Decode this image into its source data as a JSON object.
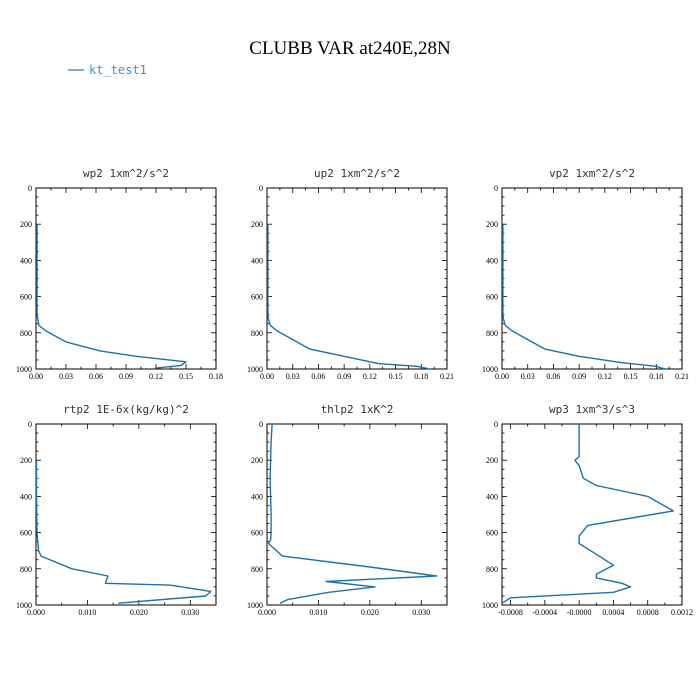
{
  "title": "CLUBB VAR at240E,28N",
  "legend": {
    "label": "kt_test1",
    "color": "#4a90c8"
  },
  "series_color": "#1f6fae",
  "chart_data": [
    {
      "type": "line",
      "title": "wp2  1xm^2/s^2",
      "xlim": [
        0,
        0.18
      ],
      "ylim": [
        0,
        1000
      ],
      "xticks": [
        "0.00",
        "0.03",
        "0.06",
        "0.09",
        "0.12",
        "0.15",
        "0.18"
      ],
      "xticks_v": [
        0,
        0.03,
        0.06,
        0.09,
        0.12,
        0.15,
        0.18
      ],
      "yticks": [
        "0",
        "200",
        "400",
        "600",
        "800",
        "1000"
      ],
      "yticks_v": [
        0,
        200,
        400,
        600,
        800,
        1000
      ],
      "x": [
        0.001,
        0.001,
        0.001,
        0.001,
        0.002,
        0.003,
        0.01,
        0.03,
        0.064,
        0.1,
        0.15,
        0.145,
        0.12
      ],
      "y": [
        200,
        400,
        600,
        700,
        730,
        760,
        790,
        850,
        900,
        930,
        960,
        980,
        995
      ]
    },
    {
      "type": "line",
      "title": "up2  1xm^2/s^2",
      "xlim": [
        0,
        0.21
      ],
      "ylim": [
        0,
        1000
      ],
      "xticks": [
        "0.00",
        "0.03",
        "0.06",
        "0.09",
        "0.12",
        "0.15",
        "0.18",
        "0.21"
      ],
      "xticks_v": [
        0,
        0.03,
        0.06,
        0.09,
        0.12,
        0.15,
        0.18,
        0.21
      ],
      "yticks": [
        "0",
        "200",
        "400",
        "600",
        "800",
        "1000"
      ],
      "yticks_v": [
        0,
        200,
        400,
        600,
        800,
        1000
      ],
      "x": [
        0.001,
        0.001,
        0.001,
        0.001,
        0.002,
        0.004,
        0.012,
        0.05,
        0.09,
        0.13,
        0.175,
        0.19
      ],
      "y": [
        200,
        400,
        600,
        700,
        730,
        760,
        790,
        890,
        930,
        970,
        985,
        1000
      ]
    },
    {
      "type": "line",
      "title": "vp2  1xm^2/s^2",
      "xlim": [
        0,
        0.21
      ],
      "ylim": [
        0,
        1000
      ],
      "xticks": [
        "0.00",
        "0.03",
        "0.06",
        "0.09",
        "0.12",
        "0.15",
        "0.18",
        "0.21"
      ],
      "xticks_v": [
        0,
        0.03,
        0.06,
        0.09,
        0.12,
        0.15,
        0.18,
        0.21
      ],
      "yticks": [
        "0",
        "200",
        "400",
        "600",
        "800",
        "1000"
      ],
      "yticks_v": [
        0,
        200,
        400,
        600,
        800,
        1000
      ],
      "x": [
        0.001,
        0.001,
        0.001,
        0.001,
        0.002,
        0.004,
        0.012,
        0.05,
        0.09,
        0.14,
        0.18,
        0.19
      ],
      "y": [
        200,
        400,
        600,
        700,
        730,
        760,
        790,
        890,
        930,
        965,
        985,
        1000
      ]
    },
    {
      "type": "line",
      "title": "rtp2  1E-6x(kg/kg)^2",
      "xlim": [
        0,
        0.035
      ],
      "ylim": [
        0,
        1000
      ],
      "xticks": [
        "0.000",
        "0.010",
        "0.020",
        "0.030"
      ],
      "xticks_v": [
        0,
        0.01,
        0.02,
        0.03
      ],
      "yticks": [
        "0",
        "200",
        "400",
        "600",
        "800",
        "1000"
      ],
      "yticks_v": [
        0,
        200,
        400,
        600,
        800,
        1000
      ],
      "x": [
        0.0001,
        0.0001,
        0.0002,
        0.0005,
        0.001,
        0.007,
        0.014,
        0.0135,
        0.026,
        0.034,
        0.033,
        0.016
      ],
      "y": [
        200,
        400,
        600,
        700,
        730,
        800,
        840,
        880,
        890,
        925,
        950,
        990
      ]
    },
    {
      "type": "line",
      "title": "thlp2  1xK^2",
      "xlim": [
        0,
        0.035
      ],
      "ylim": [
        0,
        1000
      ],
      "xticks": [
        "0.000",
        "0.010",
        "0.020",
        "0.030"
      ],
      "xticks_v": [
        0,
        0.01,
        0.02,
        0.03
      ],
      "yticks": [
        "0",
        "200",
        "400",
        "600",
        "800",
        "1000"
      ],
      "yticks_v": [
        0,
        200,
        400,
        600,
        800,
        1000
      ],
      "x": [
        0.001,
        0.0008,
        0.0006,
        0.0008,
        0.0008,
        0.0007,
        0.0003,
        0.003,
        0.02,
        0.033,
        0.0115,
        0.021,
        0.012,
        0.004,
        0.0025
      ],
      "y": [
        0,
        100,
        300,
        500,
        600,
        640,
        660,
        730,
        790,
        840,
        870,
        900,
        930,
        970,
        990
      ]
    },
    {
      "type": "line",
      "title": "wp3  1xm^3/s^3",
      "xlim": [
        -0.0009,
        0.0012
      ],
      "ylim": [
        0,
        1000
      ],
      "xticks": [
        "-0.0008",
        "-0.0004",
        "-0.0000",
        "0.0004",
        "0.0008",
        "0.0012"
      ],
      "xticks_v": [
        -0.0008,
        -0.0004,
        0,
        0.0004,
        0.0008,
        0.0012
      ],
      "yticks": [
        "0",
        "200",
        "400",
        "600",
        "800",
        "1000"
      ],
      "yticks_v": [
        0,
        200,
        400,
        600,
        800,
        1000
      ],
      "x": [
        0,
        0,
        -5e-05,
        0,
        5e-05,
        0.0002,
        0.0008,
        0.0011,
        0.0001,
        0,
        0,
        0.0002,
        0.0004,
        0.0002,
        0.0002,
        0.0005,
        0.0006,
        0.0004,
        -0.0008,
        -0.0009
      ],
      "y": [
        0,
        180,
        200,
        230,
        300,
        340,
        400,
        480,
        560,
        620,
        660,
        720,
        780,
        830,
        850,
        880,
        900,
        930,
        960,
        990
      ]
    }
  ]
}
